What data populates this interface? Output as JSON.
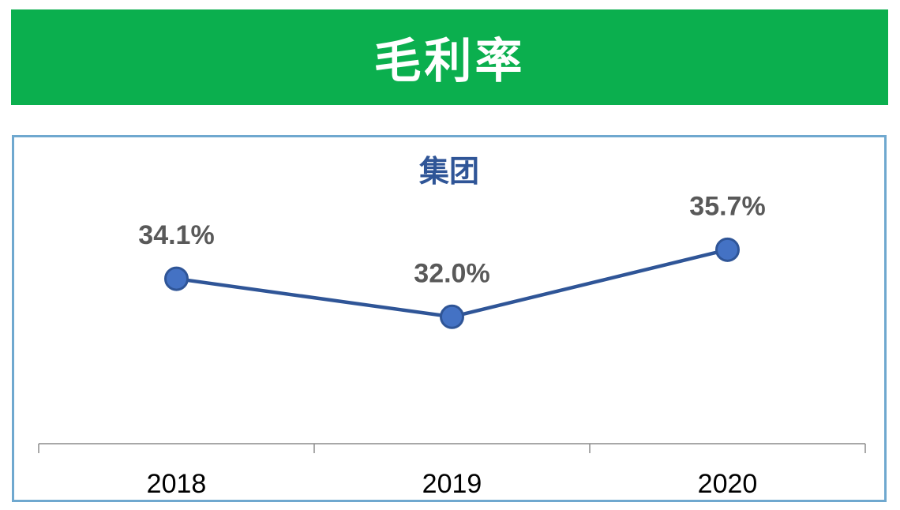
{
  "banner": {
    "title": "毛利率"
  },
  "colors": {
    "banner": "#0BAF4E",
    "line": "#2F5597",
    "marker": "#4472C4",
    "label": "#595959",
    "frame": "#6FA8CF"
  },
  "chart_data": {
    "type": "line",
    "title": "集团",
    "categories": [
      "2018",
      "2019",
      "2020"
    ],
    "series": [
      {
        "values": [
          34.1,
          32.0,
          35.7
        ],
        "labels": [
          "34.1%",
          "32.0%",
          "35.7%"
        ]
      }
    ],
    "ylim": [
      25,
      37.5
    ],
    "grid": false,
    "legend": "none"
  }
}
